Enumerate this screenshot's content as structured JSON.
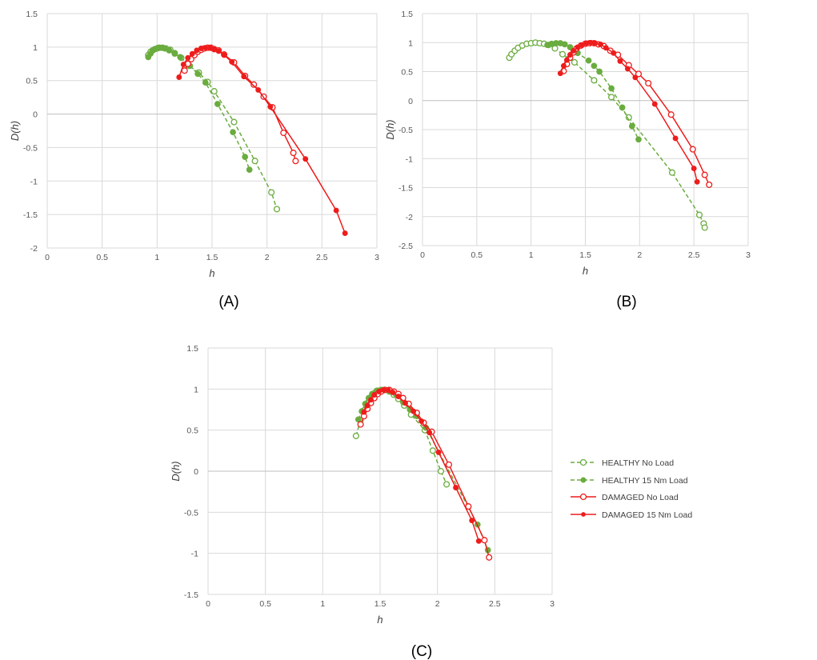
{
  "colors": {
    "healthy": "#6aac3f",
    "damaged": "#ee1c1c",
    "grid": "#d9d9d9",
    "zero": "#bfbfbf"
  },
  "legend": {
    "placement": "right of panel C",
    "entries": [
      {
        "series": "hn",
        "label": "HEALTHY No Load",
        "style": "dashed",
        "marker": "open-circle"
      },
      {
        "series": "hl",
        "label": "HEALTHY 15 Nm Load",
        "style": "dashed",
        "marker": "filled-dot"
      },
      {
        "series": "dn",
        "label": "DAMAGED No Load",
        "style": "solid",
        "marker": "open-circle"
      },
      {
        "series": "dl",
        "label": "DAMAGED 15 Nm Load",
        "style": "solid",
        "marker": "filled-dot"
      }
    ]
  },
  "chart_data": [
    {
      "type": "line",
      "panel_label": "(A)",
      "xlabel": "h",
      "ylabel": "D(h)",
      "xlim": [
        0,
        3
      ],
      "ylim": [
        -2,
        1.5
      ],
      "xticks": [
        "0",
        "0.5",
        "1",
        "1.5",
        "2",
        "2.5",
        "3"
      ],
      "yticks": [
        "-2",
        "-1.5",
        "-1",
        "-0.5",
        "0",
        "0.5",
        "1",
        "1.5"
      ],
      "grid": true,
      "series": [
        {
          "key": "hn",
          "label": "HEALTHY No Load",
          "color": "#6aac3f",
          "dashed": true,
          "filled": false,
          "points": [
            [
              0.92,
              0.88
            ],
            [
              0.94,
              0.93
            ],
            [
              0.96,
              0.95
            ],
            [
              0.98,
              0.97
            ],
            [
              1.0,
              0.98
            ],
            [
              1.02,
              0.99
            ],
            [
              1.05,
              0.99
            ],
            [
              1.08,
              0.98
            ],
            [
              1.12,
              0.96
            ],
            [
              1.16,
              0.91
            ],
            [
              1.22,
              0.84
            ],
            [
              1.29,
              0.72
            ],
            [
              1.38,
              0.62
            ],
            [
              1.46,
              0.48
            ],
            [
              1.52,
              0.34
            ],
            [
              1.7,
              -0.12
            ],
            [
              1.89,
              -0.7
            ],
            [
              2.04,
              -1.17
            ],
            [
              2.09,
              -1.42
            ]
          ]
        },
        {
          "key": "hl",
          "label": "HEALTHY 15 Nm Load",
          "color": "#6aac3f",
          "dashed": true,
          "filled": true,
          "points": [
            [
              0.92,
              0.85
            ],
            [
              0.94,
              0.9
            ],
            [
              0.96,
              0.95
            ],
            [
              0.98,
              0.97
            ],
            [
              1.01,
              0.99
            ],
            [
              1.04,
              0.99
            ],
            [
              1.07,
              0.98
            ],
            [
              1.11,
              0.95
            ],
            [
              1.16,
              0.9
            ],
            [
              1.21,
              0.85
            ],
            [
              1.3,
              0.72
            ],
            [
              1.37,
              0.6
            ],
            [
              1.44,
              0.47
            ],
            [
              1.55,
              0.15
            ],
            [
              1.69,
              -0.27
            ],
            [
              1.8,
              -0.64
            ],
            [
              1.84,
              -0.83
            ]
          ]
        },
        {
          "key": "dn",
          "label": "DAMAGED No Load",
          "color": "#ee1c1c",
          "dashed": false,
          "filled": false,
          "points": [
            [
              1.25,
              0.65
            ],
            [
              1.28,
              0.75
            ],
            [
              1.31,
              0.82
            ],
            [
              1.34,
              0.88
            ],
            [
              1.37,
              0.93
            ],
            [
              1.4,
              0.96
            ],
            [
              1.43,
              0.98
            ],
            [
              1.46,
              0.99
            ],
            [
              1.49,
              0.99
            ],
            [
              1.52,
              0.97
            ],
            [
              1.56,
              0.95
            ],
            [
              1.61,
              0.89
            ],
            [
              1.7,
              0.77
            ],
            [
              1.8,
              0.57
            ],
            [
              1.88,
              0.44
            ],
            [
              1.97,
              0.26
            ],
            [
              2.05,
              0.1
            ],
            [
              2.15,
              -0.28
            ],
            [
              2.24,
              -0.58
            ],
            [
              2.26,
              -0.7
            ]
          ]
        },
        {
          "key": "dl",
          "label": "DAMAGED 15 Nm Load",
          "color": "#ee1c1c",
          "dashed": false,
          "filled": true,
          "points": [
            [
              1.2,
              0.55
            ],
            [
              1.24,
              0.74
            ],
            [
              1.28,
              0.84
            ],
            [
              1.32,
              0.9
            ],
            [
              1.36,
              0.95
            ],
            [
              1.4,
              0.98
            ],
            [
              1.44,
              0.99
            ],
            [
              1.48,
              0.99
            ],
            [
              1.52,
              0.97
            ],
            [
              1.56,
              0.94
            ],
            [
              1.61,
              0.88
            ],
            [
              1.68,
              0.78
            ],
            [
              1.79,
              0.56
            ],
            [
              1.92,
              0.36
            ],
            [
              2.03,
              0.11
            ],
            [
              2.35,
              -0.67
            ],
            [
              2.63,
              -1.44
            ],
            [
              2.71,
              -1.78
            ]
          ]
        }
      ]
    },
    {
      "type": "line",
      "panel_label": "(B)",
      "xlabel": "h",
      "ylabel": "D(h)",
      "xlim": [
        0,
        3
      ],
      "ylim": [
        -2.5,
        1.5
      ],
      "xticks": [
        "0",
        "0.5",
        "1",
        "1.5",
        "2",
        "2.5",
        "3"
      ],
      "yticks": [
        "-2.5",
        "-2",
        "-1.5",
        "-1",
        "-0.5",
        "0",
        "0.5",
        "1",
        "1.5"
      ],
      "grid": true,
      "series": [
        {
          "key": "hn",
          "label": "HEALTHY No Load",
          "color": "#6aac3f",
          "dashed": true,
          "filled": false,
          "points": [
            [
              0.8,
              0.74
            ],
            [
              0.82,
              0.8
            ],
            [
              0.85,
              0.86
            ],
            [
              0.88,
              0.91
            ],
            [
              0.92,
              0.95
            ],
            [
              0.96,
              0.98
            ],
            [
              1.0,
              0.99
            ],
            [
              1.04,
              1.0
            ],
            [
              1.08,
              0.99
            ],
            [
              1.12,
              0.98
            ],
            [
              1.16,
              0.96
            ],
            [
              1.22,
              0.9
            ],
            [
              1.29,
              0.8
            ],
            [
              1.4,
              0.66
            ],
            [
              1.58,
              0.35
            ],
            [
              1.74,
              0.06
            ],
            [
              1.9,
              -0.29
            ],
            [
              2.3,
              -1.24
            ],
            [
              2.55,
              -1.97
            ],
            [
              2.59,
              -2.12
            ],
            [
              2.6,
              -2.19
            ]
          ]
        },
        {
          "key": "hl",
          "label": "HEALTHY 15 Nm Load",
          "color": "#6aac3f",
          "dashed": true,
          "filled": true,
          "points": [
            [
              1.15,
              0.96
            ],
            [
              1.19,
              0.98
            ],
            [
              1.23,
              0.99
            ],
            [
              1.27,
              0.99
            ],
            [
              1.31,
              0.97
            ],
            [
              1.36,
              0.92
            ],
            [
              1.43,
              0.82
            ],
            [
              1.53,
              0.69
            ],
            [
              1.58,
              0.6
            ],
            [
              1.63,
              0.5
            ],
            [
              1.74,
              0.21
            ],
            [
              1.84,
              -0.12
            ],
            [
              1.93,
              -0.44
            ],
            [
              1.99,
              -0.67
            ]
          ]
        },
        {
          "key": "dn",
          "label": "DAMAGED No Load",
          "color": "#ee1c1c",
          "dashed": false,
          "filled": false,
          "points": [
            [
              1.3,
              0.51
            ],
            [
              1.33,
              0.63
            ],
            [
              1.36,
              0.74
            ],
            [
              1.39,
              0.83
            ],
            [
              1.42,
              0.9
            ],
            [
              1.46,
              0.95
            ],
            [
              1.5,
              0.98
            ],
            [
              1.54,
              0.99
            ],
            [
              1.58,
              0.99
            ],
            [
              1.62,
              0.97
            ],
            [
              1.67,
              0.94
            ],
            [
              1.73,
              0.86
            ],
            [
              1.8,
              0.79
            ],
            [
              1.9,
              0.61
            ],
            [
              1.99,
              0.46
            ],
            [
              2.08,
              0.3
            ],
            [
              2.29,
              -0.24
            ],
            [
              2.49,
              -0.84
            ],
            [
              2.6,
              -1.28
            ],
            [
              2.64,
              -1.45
            ]
          ]
        },
        {
          "key": "dl",
          "label": "DAMAGED 15 Nm Load",
          "color": "#ee1c1c",
          "dashed": false,
          "filled": true,
          "points": [
            [
              1.27,
              0.47
            ],
            [
              1.3,
              0.6
            ],
            [
              1.33,
              0.7
            ],
            [
              1.36,
              0.79
            ],
            [
              1.39,
              0.86
            ],
            [
              1.43,
              0.92
            ],
            [
              1.47,
              0.96
            ],
            [
              1.51,
              0.99
            ],
            [
              1.55,
              1.0
            ],
            [
              1.59,
              0.99
            ],
            [
              1.64,
              0.97
            ],
            [
              1.69,
              0.91
            ],
            [
              1.76,
              0.82
            ],
            [
              1.82,
              0.68
            ],
            [
              1.89,
              0.55
            ],
            [
              1.96,
              0.4
            ],
            [
              2.14,
              -0.06
            ],
            [
              2.33,
              -0.65
            ],
            [
              2.5,
              -1.17
            ],
            [
              2.53,
              -1.4
            ]
          ]
        }
      ]
    },
    {
      "type": "line",
      "panel_label": "(C)",
      "xlabel": "h",
      "ylabel": "D(h)",
      "xlim": [
        0,
        3
      ],
      "ylim": [
        -1.5,
        1.5
      ],
      "xticks": [
        "0",
        "0.5",
        "1",
        "1.5",
        "2",
        "2.5",
        "3"
      ],
      "yticks": [
        "-1.5",
        "-1",
        "-0.5",
        "0",
        "0.5",
        "1",
        "1.5"
      ],
      "grid": true,
      "series": [
        {
          "key": "hn",
          "label": "HEALTHY No Load",
          "color": "#6aac3f",
          "dashed": true,
          "filled": false,
          "points": [
            [
              1.29,
              0.43
            ],
            [
              1.33,
              0.62
            ],
            [
              1.36,
              0.74
            ],
            [
              1.39,
              0.83
            ],
            [
              1.42,
              0.9
            ],
            [
              1.45,
              0.95
            ],
            [
              1.48,
              0.98
            ],
            [
              1.51,
              0.99
            ],
            [
              1.54,
              0.99
            ],
            [
              1.58,
              0.97
            ],
            [
              1.62,
              0.93
            ],
            [
              1.66,
              0.88
            ],
            [
              1.71,
              0.8
            ],
            [
              1.77,
              0.69
            ],
            [
              1.89,
              0.5
            ],
            [
              1.96,
              0.25
            ],
            [
              2.03,
              0.0
            ],
            [
              2.08,
              -0.16
            ]
          ]
        },
        {
          "key": "hl",
          "label": "HEALTHY 15 Nm Load",
          "color": "#6aac3f",
          "dashed": true,
          "filled": true,
          "points": [
            [
              1.31,
              0.63
            ],
            [
              1.34,
              0.73
            ],
            [
              1.37,
              0.82
            ],
            [
              1.4,
              0.89
            ],
            [
              1.43,
              0.94
            ],
            [
              1.47,
              0.98
            ],
            [
              1.51,
              0.99
            ],
            [
              1.55,
              0.99
            ],
            [
              1.59,
              0.97
            ],
            [
              1.64,
              0.93
            ],
            [
              1.7,
              0.84
            ],
            [
              1.76,
              0.75
            ],
            [
              1.82,
              0.67
            ],
            [
              1.9,
              0.53
            ],
            [
              2.35,
              -0.65
            ],
            [
              2.44,
              -0.96
            ]
          ]
        },
        {
          "key": "dn",
          "label": "DAMAGED No Load",
          "color": "#ee1c1c",
          "dashed": false,
          "filled": false,
          "points": [
            [
              1.33,
              0.57
            ],
            [
              1.36,
              0.67
            ],
            [
              1.39,
              0.76
            ],
            [
              1.42,
              0.83
            ],
            [
              1.45,
              0.89
            ],
            [
              1.48,
              0.94
            ],
            [
              1.51,
              0.97
            ],
            [
              1.54,
              0.99
            ],
            [
              1.58,
              0.99
            ],
            [
              1.62,
              0.97
            ],
            [
              1.66,
              0.94
            ],
            [
              1.7,
              0.89
            ],
            [
              1.75,
              0.82
            ],
            [
              1.82,
              0.71
            ],
            [
              1.88,
              0.59
            ],
            [
              1.95,
              0.48
            ],
            [
              2.1,
              0.08
            ],
            [
              2.27,
              -0.43
            ],
            [
              2.41,
              -0.84
            ],
            [
              2.45,
              -1.05
            ]
          ]
        },
        {
          "key": "dl",
          "label": "DAMAGED 15 Nm Load",
          "color": "#ee1c1c",
          "dashed": false,
          "filled": true,
          "points": [
            [
              1.36,
              0.72
            ],
            [
              1.39,
              0.8
            ],
            [
              1.42,
              0.87
            ],
            [
              1.45,
              0.93
            ],
            [
              1.49,
              0.97
            ],
            [
              1.53,
              0.99
            ],
            [
              1.57,
              0.99
            ],
            [
              1.61,
              0.96
            ],
            [
              1.66,
              0.91
            ],
            [
              1.72,
              0.83
            ],
            [
              1.79,
              0.73
            ],
            [
              1.86,
              0.61
            ],
            [
              1.93,
              0.47
            ],
            [
              2.01,
              0.23
            ],
            [
              2.16,
              -0.2
            ],
            [
              2.3,
              -0.6
            ],
            [
              2.36,
              -0.85
            ]
          ]
        }
      ]
    }
  ]
}
